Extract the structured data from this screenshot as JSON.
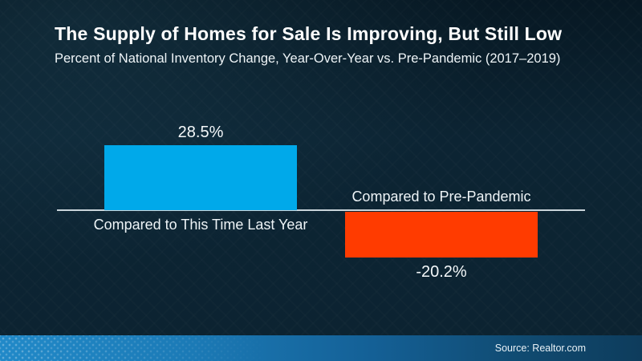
{
  "header": {
    "title": "The Supply of Homes for Sale Is Improving, But Still Low",
    "subtitle": "Percent of National Inventory Change, Year-Over-Year vs. Pre-Pandemic (2017–2019)"
  },
  "chart_data": {
    "type": "bar",
    "title": "The Supply of Homes for Sale Is Improving, But Still Low",
    "subtitle": "Percent of National Inventory Change, Year-Over-Year vs. Pre-Pandemic (2017–2019)",
    "categories": [
      "Compared to This Time Last Year",
      "Compared to Pre-Pandemic"
    ],
    "values": [
      28.5,
      -20.2
    ],
    "data_labels": [
      "28.5%",
      "-20.2%"
    ],
    "series_colors": [
      "#00a9ea",
      "#ff3b00"
    ],
    "xlabel": "",
    "ylabel": "",
    "ylim": [
      -25,
      30
    ],
    "grid": false,
    "legend": false,
    "baseline": 0,
    "orientation": "vertical"
  },
  "footer": {
    "source": "Source: Realtor.com"
  },
  "colors": {
    "background": "#0c2433",
    "bar_positive": "#00a9ea",
    "bar_negative": "#ff3b00",
    "baseline_line": "#c9d4da",
    "band_left": "#2189c8",
    "band_right": "#0e3c5c",
    "text": "#ffffff"
  }
}
